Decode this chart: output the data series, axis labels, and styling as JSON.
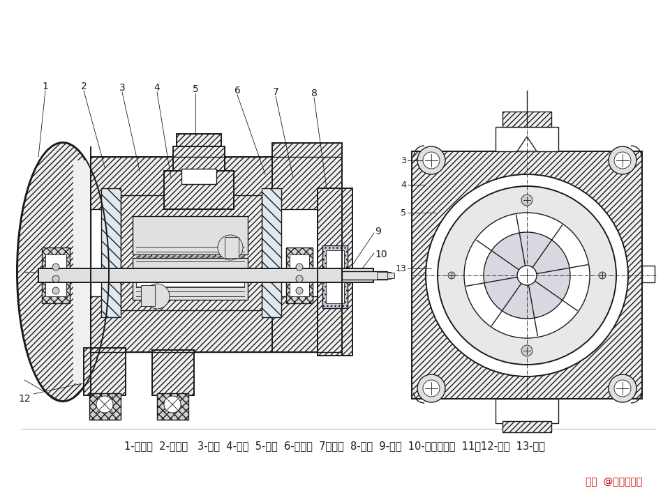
{
  "background_color": "#ffffff",
  "line_color": "#1a1a1a",
  "caption": "1-前泵体  2-配流盘   3-转子  4-定子  5-叶片  6-配流盘  7后泵体  8-端盖  9-主轴  10-密封防尘圈  11、12-轴承  13-螺钉",
  "caption_fontsize": 10.5,
  "watermark": "头条  @一位工程师",
  "fig_width": 9.6,
  "fig_height": 7.2,
  "dpi": 100
}
